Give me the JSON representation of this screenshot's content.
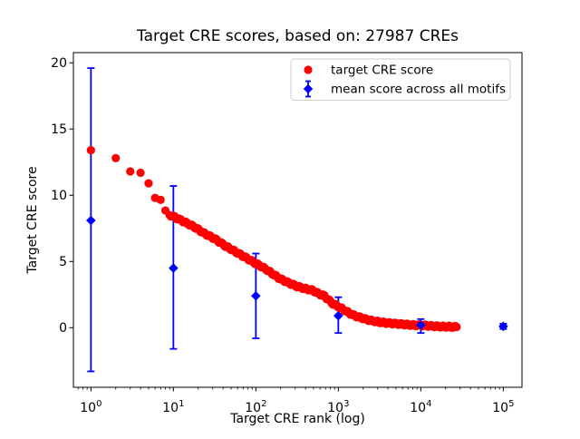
{
  "title": "Target CRE scores, based on: 27987 CREs",
  "chart_data": {
    "type": "scatter",
    "title": "Target CRE scores, based on: 27987 CREs",
    "xlabel": "Target CRE rank (log)",
    "ylabel": "Target CRE score",
    "x_scale": "log",
    "xlim_log10": [
      -0.2125,
      5.227
    ],
    "ylim": [
      -4.5,
      20.77
    ],
    "grid": false,
    "legend_position": "upper center-right",
    "x_ticks": [
      {
        "value": 1,
        "base": "10",
        "exponent": "0"
      },
      {
        "value": 10,
        "base": "10",
        "exponent": "1"
      },
      {
        "value": 100,
        "base": "10",
        "exponent": "2"
      },
      {
        "value": 1000,
        "base": "10",
        "exponent": "3"
      },
      {
        "value": 10000,
        "base": "10",
        "exponent": "4"
      },
      {
        "value": 100000,
        "base": "10",
        "exponent": "5"
      }
    ],
    "y_ticks": [
      {
        "value": 0,
        "label": "0"
      },
      {
        "value": 5,
        "label": "5"
      },
      {
        "value": 10,
        "label": "10"
      },
      {
        "value": 15,
        "label": "15"
      },
      {
        "value": 20,
        "label": "20"
      }
    ],
    "series": [
      {
        "name": "target CRE score",
        "type": "scatter",
        "marker": "circle",
        "color": "#ff0000",
        "points": [
          [
            1,
            13.4
          ],
          [
            2,
            12.8
          ],
          [
            3,
            11.8
          ],
          [
            4,
            11.7
          ],
          [
            5,
            10.9
          ],
          [
            6,
            9.8
          ],
          [
            7,
            9.65
          ],
          [
            8,
            8.85
          ],
          [
            9,
            8.5
          ],
          [
            10,
            8.4
          ],
          [
            13,
            8.05
          ],
          [
            18,
            7.6
          ],
          [
            24,
            7.1
          ],
          [
            32,
            6.7
          ],
          [
            42,
            6.2
          ],
          [
            56,
            5.75
          ],
          [
            75,
            5.3
          ],
          [
            100,
            4.85
          ],
          [
            130,
            4.45
          ],
          [
            170,
            3.95
          ],
          [
            195,
            3.7
          ],
          [
            251,
            3.38
          ],
          [
            320,
            3.1
          ],
          [
            398,
            2.95
          ],
          [
            500,
            2.8
          ],
          [
            560,
            2.6
          ],
          [
            676,
            2.4
          ],
          [
            760,
            2.1
          ],
          [
            871,
            1.78
          ],
          [
            1000,
            1.6
          ],
          [
            1200,
            1.3
          ],
          [
            1400,
            1.05
          ],
          [
            1622,
            0.87
          ],
          [
            1900,
            0.75
          ],
          [
            2239,
            0.6
          ],
          [
            2700,
            0.5
          ],
          [
            3162,
            0.42
          ],
          [
            4000,
            0.35
          ],
          [
            5012,
            0.3
          ],
          [
            6300,
            0.25
          ],
          [
            8000,
            0.2
          ],
          [
            10000,
            0.18
          ],
          [
            12600,
            0.14
          ],
          [
            15849,
            0.1
          ],
          [
            20000,
            0.08
          ],
          [
            25000,
            0.06
          ],
          [
            27987,
            0.05
          ]
        ]
      },
      {
        "name": "mean score across all motifs",
        "type": "errorbar",
        "marker": "diamond",
        "color": "#0000ff",
        "points": [
          {
            "x": 1,
            "mean": 8.1,
            "lo": -3.3,
            "hi": 19.6
          },
          {
            "x": 10,
            "mean": 4.5,
            "lo": -1.6,
            "hi": 10.7
          },
          {
            "x": 100,
            "mean": 2.4,
            "lo": -0.8,
            "hi": 5.6
          },
          {
            "x": 1000,
            "mean": 0.9,
            "lo": -0.4,
            "hi": 2.3
          },
          {
            "x": 10000,
            "mean": 0.2,
            "lo": -0.4,
            "hi": 0.65
          },
          {
            "x": 100000,
            "mean": 0.1,
            "lo": -0.1,
            "hi": 0.3
          }
        ]
      }
    ]
  }
}
